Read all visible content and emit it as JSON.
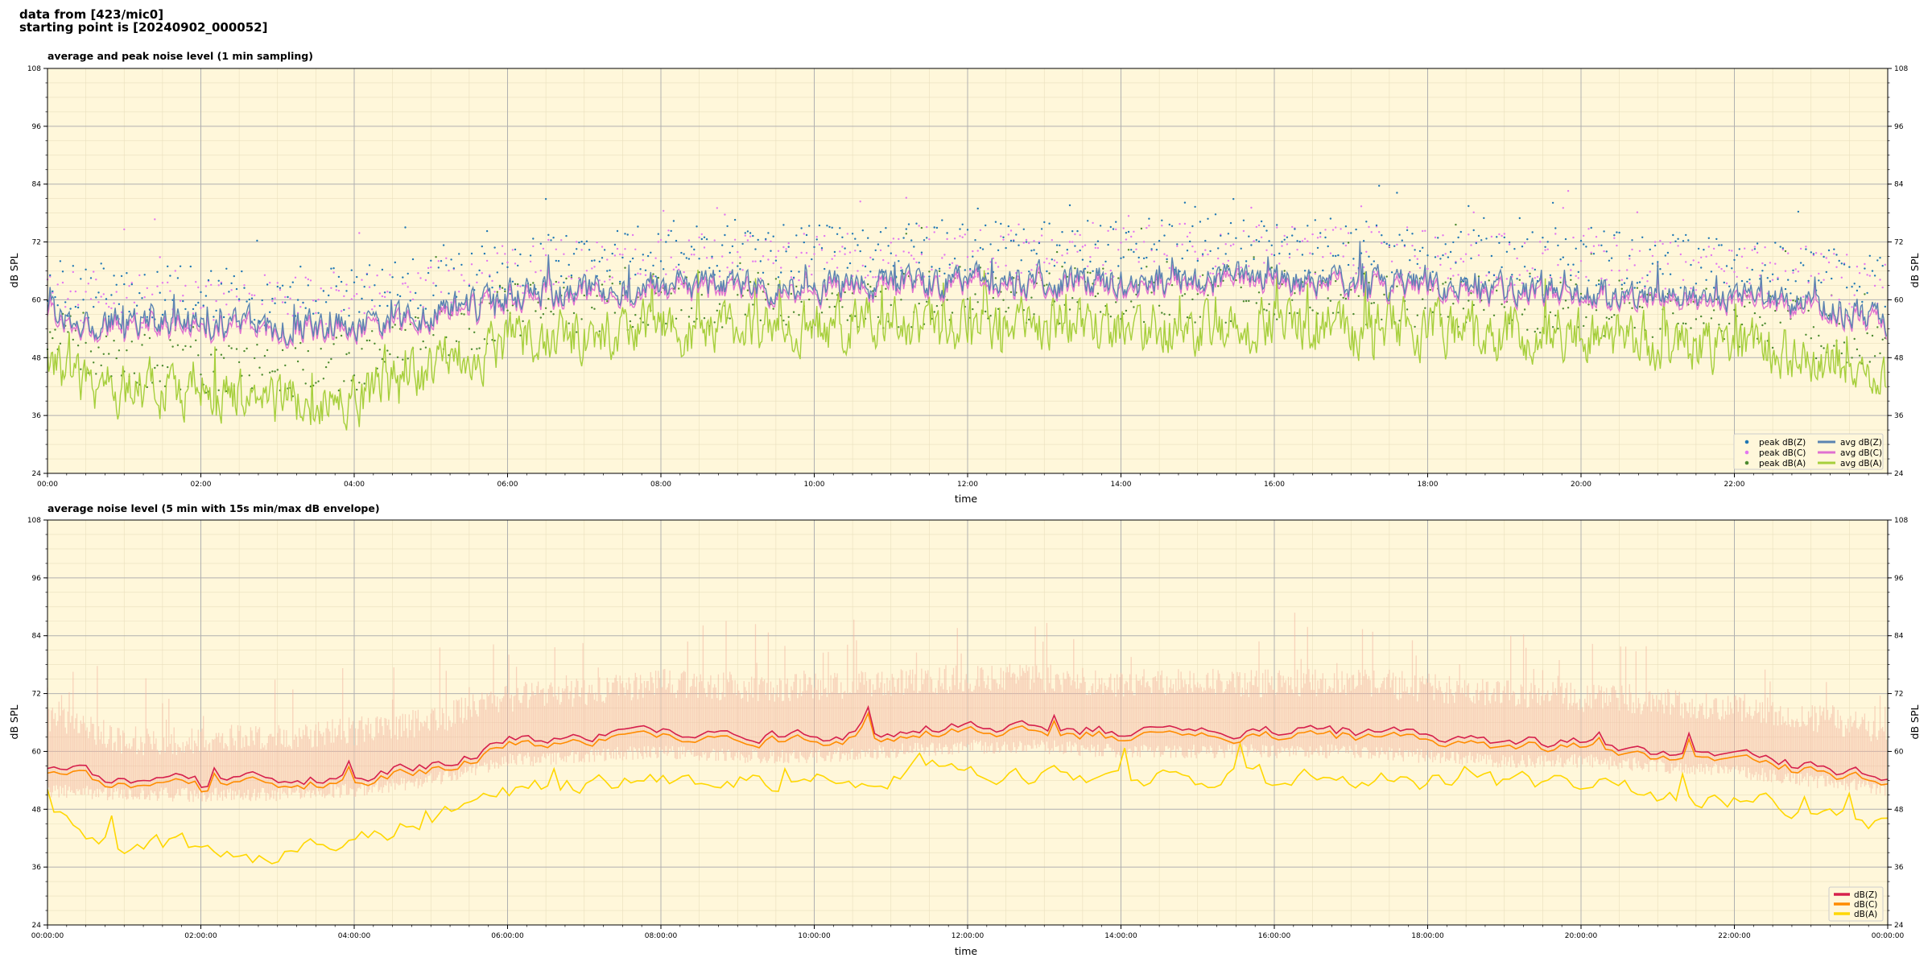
{
  "header": {
    "line1": "data from [423/mic0]",
    "line2": "starting point is [20240902_000052]"
  },
  "colors": {
    "plot_bg": "#fff7da",
    "peak_z": "#1f77b4",
    "peak_c": "#e377f0",
    "peak_a": "#4c8a2f",
    "avg_z": "#5b84b1",
    "avg_c": "#e070d0",
    "avg_a": "#a6cf3c",
    "db_z": "#d6204c",
    "db_c": "#ff8c00",
    "db_a": "#ffd700",
    "envelope": "#f3b7a0"
  },
  "chart_data": [
    {
      "type": "line",
      "title": "average and peak noise level (1 min sampling)",
      "xlabel": "time",
      "ylabel": "dB SPL",
      "ylim": [
        24,
        108
      ],
      "yticks": [
        "24",
        "36",
        "48",
        "60",
        "72",
        "84",
        "96",
        "108"
      ],
      "xlim": [
        "00:00",
        "24:00"
      ],
      "xticks": [
        "00:00",
        "02:00",
        "04:00",
        "06:00",
        "08:00",
        "10:00",
        "12:00",
        "14:00",
        "16:00",
        "18:00",
        "20:00",
        "22:00"
      ],
      "grid": true,
      "legend_position": "bottom-right",
      "legend": [
        "peak dB(Z)",
        "peak dB(C)",
        "peak dB(A)",
        "avg dB(Z)",
        "avg dB(C)",
        "avg dB(A)"
      ],
      "hours": [
        0,
        1,
        2,
        3,
        4,
        5,
        6,
        7,
        8,
        9,
        10,
        11,
        12,
        13,
        14,
        15,
        16,
        17,
        18,
        19,
        20,
        21,
        22,
        23,
        24
      ],
      "series": [
        {
          "name": "avg dB(Z)",
          "kind": "line",
          "values": [
            57,
            55,
            55,
            54,
            55,
            57,
            61,
            62,
            63,
            63,
            63,
            63,
            64,
            64,
            64,
            64,
            64,
            64,
            63,
            62,
            62,
            61,
            60,
            59,
            56
          ]
        },
        {
          "name": "avg dB(C)",
          "kind": "line",
          "values": [
            56,
            54,
            54,
            53,
            54,
            56,
            60,
            61,
            62,
            62,
            62,
            62,
            63,
            63,
            63,
            63,
            63,
            63,
            62,
            61,
            61,
            60,
            59,
            58,
            55
          ]
        },
        {
          "name": "avg dB(A)",
          "kind": "line",
          "values": [
            45,
            42,
            40,
            38,
            40,
            45,
            52,
            53,
            54,
            54,
            54,
            54,
            55,
            55,
            54,
            54,
            55,
            55,
            54,
            53,
            53,
            51,
            50,
            48,
            43
          ]
        },
        {
          "name": "peak dB(Z)",
          "kind": "scatter",
          "values": [
            63,
            61,
            61,
            60,
            61,
            63,
            67,
            68,
            70,
            70,
            70,
            70,
            71,
            71,
            71,
            71,
            71,
            71,
            70,
            69,
            69,
            68,
            67,
            66,
            63
          ]
        },
        {
          "name": "peak dB(C)",
          "kind": "scatter",
          "values": [
            62,
            60,
            60,
            59,
            60,
            62,
            66,
            67,
            69,
            69,
            69,
            69,
            70,
            70,
            70,
            70,
            70,
            70,
            69,
            68,
            68,
            67,
            66,
            65,
            62
          ]
        },
        {
          "name": "peak dB(A)",
          "kind": "scatter",
          "values": [
            52,
            48,
            46,
            45,
            47,
            52,
            58,
            59,
            60,
            60,
            60,
            60,
            61,
            61,
            61,
            61,
            61,
            61,
            60,
            59,
            59,
            57,
            56,
            54,
            50
          ]
        }
      ]
    },
    {
      "type": "line",
      "title": "average noise level (5 min with 15s min/max dB envelope)",
      "xlabel": "time",
      "ylabel": "dB SPL",
      "ylim": [
        24,
        108
      ],
      "yticks": [
        "24",
        "36",
        "48",
        "60",
        "72",
        "84",
        "96",
        "108"
      ],
      "xlim": [
        "00:00:00",
        "24:00:00"
      ],
      "xticks": [
        "00:00:00",
        "02:00:00",
        "04:00:00",
        "06:00:00",
        "08:00:00",
        "10:00:00",
        "12:00:00",
        "14:00:00",
        "16:00:00",
        "18:00:00",
        "20:00:00",
        "22:00:00",
        "00:00:00"
      ],
      "grid": true,
      "legend_position": "bottom-right",
      "legend": [
        "dB(Z)",
        "dB(C)",
        "dB(A)"
      ],
      "hours": [
        0,
        1,
        2,
        3,
        4,
        5,
        6,
        7,
        8,
        9,
        10,
        11,
        12,
        13,
        14,
        15,
        16,
        17,
        18,
        19,
        20,
        21,
        22,
        23,
        24
      ],
      "series": [
        {
          "name": "dB(Z)",
          "kind": "line",
          "values": [
            57,
            54,
            54,
            54,
            55,
            57,
            62,
            63,
            64,
            63,
            63,
            64,
            65,
            65,
            64,
            64,
            64,
            64,
            63,
            62,
            62,
            60,
            59,
            57,
            55
          ]
        },
        {
          "name": "dB(C)",
          "kind": "line",
          "values": [
            56,
            53,
            53,
            53,
            54,
            56,
            61,
            62,
            63,
            62,
            62,
            63,
            64,
            64,
            63,
            63,
            63,
            63,
            62,
            61,
            61,
            59,
            58,
            56,
            54
          ]
        },
        {
          "name": "dB(A)",
          "kind": "line",
          "values": [
            46,
            41,
            40,
            38,
            41,
            46,
            52,
            53,
            55,
            54,
            54,
            55,
            56,
            55,
            54,
            54,
            55,
            55,
            54,
            53,
            53,
            51,
            50,
            48,
            45
          ]
        }
      ],
      "envelope": {
        "min": [
          52,
          51,
          51,
          51,
          52,
          54,
          58,
          59,
          60,
          59,
          59,
          60,
          61,
          61,
          60,
          60,
          60,
          60,
          59,
          58,
          58,
          57,
          56,
          54,
          52
        ],
        "max": [
          66,
          61,
          61,
          62,
          63,
          65,
          70,
          71,
          73,
          72,
          72,
          73,
          74,
          74,
          73,
          73,
          73,
          73,
          72,
          71,
          70,
          69,
          68,
          66,
          63
        ]
      }
    }
  ]
}
